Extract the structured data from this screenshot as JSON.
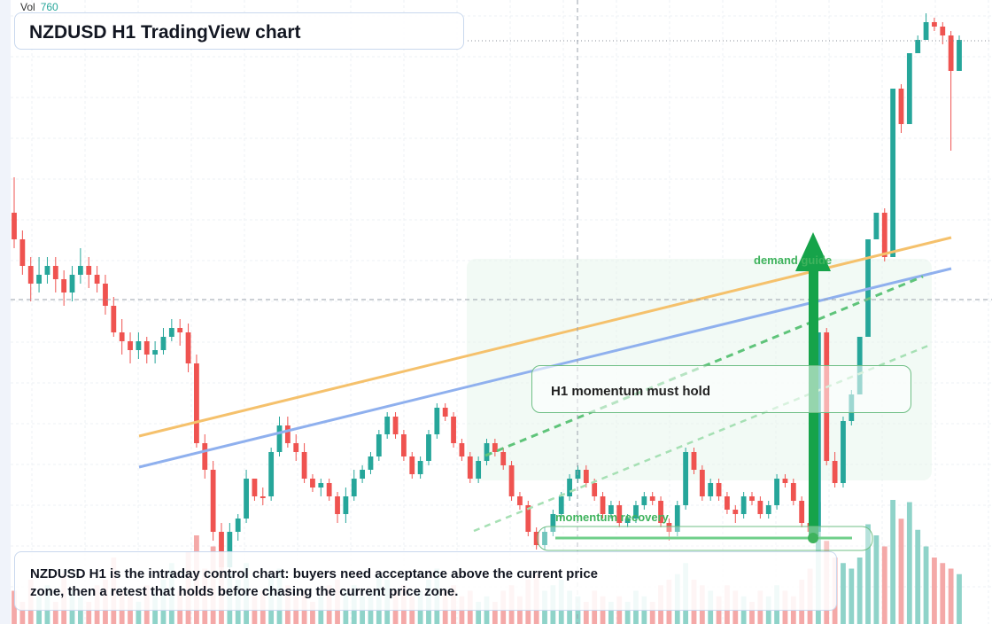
{
  "header": {
    "vol_label": "Vol",
    "vol_value": "760",
    "title": "NZDUSD H1 TradingView chart"
  },
  "annotations": {
    "note": "H1 momentum must hold",
    "demand_label": "demand guide",
    "momentum_label": "momentum recovery",
    "caption": "NZDUSD H1 is the intraday control chart: buyers need acceptance above the current price zone, then a retest that holds before chasing the current price zone."
  },
  "colors": {
    "up": "#26a69a",
    "down": "#ef5350",
    "up_volume": "#8fd3c9",
    "down_volume": "#f4a9a8",
    "trend_orange": "#f5c16c",
    "trend_blue": "#8fb0ee",
    "green_accent": "#16a34a",
    "green_label": "#3fb35d"
  },
  "chart_data": {
    "type": "candlestick",
    "timeframe": "H1",
    "symbol": "NZDUSD",
    "price_axis_labels": "not visible",
    "grid": true,
    "crosshair": true,
    "candles_ohlcv_chart_units": [
      [
        240,
        270,
        280,
        200,
        30
      ],
      [
        270,
        300,
        310,
        260,
        20
      ],
      [
        300,
        320,
        340,
        290,
        40
      ],
      [
        320,
        310,
        330,
        290,
        25
      ],
      [
        310,
        300,
        320,
        290,
        35
      ],
      [
        300,
        315,
        330,
        290,
        20
      ],
      [
        315,
        330,
        345,
        305,
        45
      ],
      [
        330,
        310,
        340,
        300,
        30
      ],
      [
        310,
        300,
        320,
        280,
        25
      ],
      [
        300,
        310,
        325,
        290,
        20
      ],
      [
        310,
        320,
        330,
        300,
        35
      ],
      [
        320,
        345,
        355,
        310,
        40
      ],
      [
        345,
        375,
        380,
        335,
        60
      ],
      [
        375,
        385,
        400,
        360,
        30
      ],
      [
        385,
        395,
        410,
        375,
        25
      ],
      [
        395,
        385,
        405,
        375,
        20
      ],
      [
        385,
        400,
        410,
        380,
        35
      ],
      [
        400,
        395,
        410,
        385,
        30
      ],
      [
        395,
        380,
        400,
        370,
        40
      ],
      [
        380,
        370,
        385,
        360,
        55
      ],
      [
        370,
        375,
        390,
        360,
        30
      ],
      [
        375,
        410,
        420,
        365,
        65
      ],
      [
        410,
        500,
        505,
        400,
        80
      ],
      [
        500,
        530,
        540,
        490,
        50
      ],
      [
        530,
        600,
        610,
        520,
        70
      ],
      [
        600,
        640,
        650,
        590,
        60
      ],
      [
        640,
        600,
        650,
        590,
        45
      ],
      [
        600,
        585,
        610,
        580,
        40
      ],
      [
        585,
        540,
        590,
        530,
        55
      ],
      [
        540,
        560,
        565,
        550,
        25
      ],
      [
        560,
        560,
        570,
        550,
        30
      ],
      [
        560,
        510,
        565,
        505,
        45
      ],
      [
        510,
        480,
        515,
        470,
        50
      ],
      [
        480,
        500,
        505,
        470,
        35
      ],
      [
        500,
        510,
        520,
        490,
        25
      ],
      [
        510,
        540,
        545,
        500,
        30
      ],
      [
        540,
        550,
        555,
        535,
        20
      ],
      [
        550,
        545,
        560,
        540,
        25
      ],
      [
        545,
        560,
        565,
        540,
        35
      ],
      [
        560,
        580,
        590,
        555,
        40
      ],
      [
        580,
        560,
        590,
        550,
        30
      ],
      [
        560,
        540,
        565,
        530,
        35
      ],
      [
        540,
        530,
        545,
        525,
        25
      ],
      [
        530,
        515,
        535,
        510,
        30
      ],
      [
        515,
        490,
        520,
        485,
        45
      ],
      [
        490,
        470,
        495,
        465,
        40
      ],
      [
        470,
        490,
        495,
        465,
        30
      ],
      [
        490,
        515,
        520,
        485,
        35
      ],
      [
        515,
        535,
        540,
        510,
        25
      ],
      [
        535,
        520,
        540,
        515,
        30
      ],
      [
        520,
        490,
        525,
        485,
        40
      ],
      [
        490,
        460,
        495,
        455,
        50
      ],
      [
        460,
        470,
        475,
        455,
        30
      ],
      [
        470,
        500,
        505,
        465,
        35
      ],
      [
        500,
        515,
        520,
        495,
        25
      ],
      [
        515,
        540,
        545,
        510,
        30
      ],
      [
        540,
        520,
        545,
        515,
        20
      ],
      [
        520,
        500,
        525,
        495,
        25
      ],
      [
        500,
        510,
        515,
        495,
        20
      ],
      [
        510,
        525,
        530,
        505,
        30
      ],
      [
        525,
        560,
        565,
        520,
        35
      ],
      [
        560,
        570,
        575,
        555,
        25
      ],
      [
        570,
        600,
        605,
        565,
        40
      ],
      [
        600,
        615,
        620,
        595,
        45
      ],
      [
        615,
        600,
        620,
        595,
        30
      ],
      [
        600,
        580,
        605,
        575,
        35
      ],
      [
        580,
        560,
        585,
        555,
        40
      ],
      [
        560,
        540,
        565,
        535,
        30
      ],
      [
        540,
        530,
        545,
        525,
        25
      ],
      [
        530,
        545,
        550,
        525,
        20
      ],
      [
        545,
        560,
        565,
        540,
        30
      ],
      [
        560,
        580,
        585,
        555,
        25
      ],
      [
        580,
        570,
        585,
        565,
        20
      ],
      [
        570,
        590,
        595,
        565,
        25
      ],
      [
        590,
        585,
        595,
        580,
        20
      ],
      [
        585,
        570,
        590,
        565,
        30
      ],
      [
        570,
        560,
        575,
        555,
        25
      ],
      [
        560,
        565,
        570,
        555,
        20
      ],
      [
        565,
        590,
        595,
        560,
        35
      ],
      [
        590,
        600,
        610,
        585,
        40
      ],
      [
        600,
        570,
        605,
        565,
        45
      ],
      [
        570,
        510,
        575,
        505,
        55
      ],
      [
        510,
        530,
        535,
        505,
        40
      ],
      [
        530,
        560,
        565,
        525,
        35
      ],
      [
        560,
        545,
        565,
        540,
        30
      ],
      [
        545,
        560,
        565,
        540,
        25
      ],
      [
        560,
        575,
        580,
        555,
        35
      ],
      [
        575,
        580,
        590,
        570,
        30
      ],
      [
        580,
        560,
        585,
        555,
        25
      ],
      [
        560,
        565,
        570,
        555,
        20
      ],
      [
        565,
        580,
        585,
        560,
        30
      ],
      [
        580,
        570,
        585,
        565,
        25
      ],
      [
        570,
        540,
        575,
        535,
        35
      ],
      [
        540,
        545,
        550,
        535,
        30
      ],
      [
        545,
        565,
        570,
        540,
        25
      ],
      [
        565,
        590,
        595,
        560,
        40
      ],
      [
        590,
        600,
        605,
        585,
        50
      ],
      [
        600,
        375,
        380,
        605,
        110
      ],
      [
        375,
        520,
        525,
        370,
        75
      ],
      [
        520,
        545,
        550,
        510,
        60
      ],
      [
        545,
        475,
        550,
        470,
        55
      ],
      [
        475,
        445,
        480,
        440,
        50
      ],
      [
        445,
        380,
        385,
        440,
        60
      ],
      [
        380,
        270,
        275,
        375,
        90
      ],
      [
        270,
        240,
        245,
        265,
        80
      ],
      [
        240,
        290,
        295,
        235,
        70
      ],
      [
        290,
        100,
        105,
        285,
        120
      ],
      [
        100,
        140,
        150,
        95,
        95
      ],
      [
        140,
        60,
        65,
        135,
        110
      ],
      [
        60,
        45,
        50,
        40,
        85
      ],
      [
        45,
        25,
        30,
        15,
        70
      ],
      [
        25,
        30,
        35,
        20,
        60
      ],
      [
        30,
        40,
        50,
        25,
        55
      ],
      [
        40,
        80,
        170,
        35,
        50
      ],
      [
        80,
        45,
        50,
        40,
        45
      ]
    ]
  }
}
